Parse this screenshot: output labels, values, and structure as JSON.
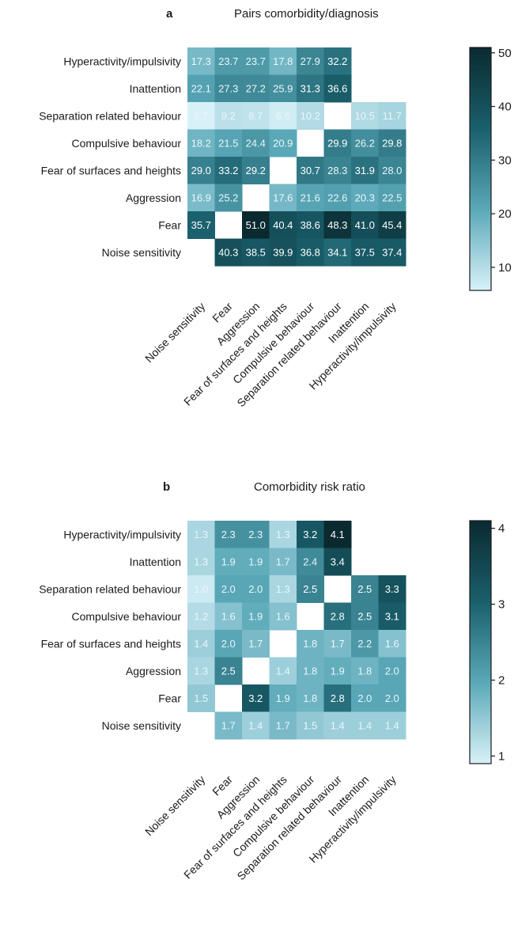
{
  "chart_data": [
    {
      "type": "heatmap",
      "panel_letter": "a",
      "title": "Pairs comorbidity/diagnosis",
      "row_labels": [
        "Hyperactivity/impulsivity",
        "Inattention",
        "Separation related behaviour",
        "Compulsive behaviour",
        "Fear of surfaces and heights",
        "Aggression",
        "Fear",
        "Noise sensitivity"
      ],
      "col_labels": [
        "Noise sensitivity",
        "Fear",
        "Aggression",
        "Fear of surfaces and heights",
        "Compulsive behaviour",
        "Separation related behaviour",
        "Inattention",
        "Hyperactivity/impulsivity"
      ],
      "values": [
        [
          "17.3",
          "23.7",
          "23.7",
          "17.8",
          "27.9",
          "32.2",
          null,
          null
        ],
        [
          "22.1",
          "27.3",
          "27.2",
          "25.9",
          "31.3",
          "36.6",
          null,
          null
        ],
        [
          "5.7",
          "9.2",
          "8.7",
          "6.6",
          "10.2",
          null,
          "10.5",
          "11.7"
        ],
        [
          "18.2",
          "21.5",
          "24.4",
          "20.9",
          null,
          "29.9",
          "26.2",
          "29.8"
        ],
        [
          "29.0",
          "33.2",
          "29.2",
          null,
          "30.7",
          "28.3",
          "31.9",
          "28.0"
        ],
        [
          "16.9",
          "25.2",
          null,
          "17.6",
          "21.6",
          "22.6",
          "20.3",
          "22.5"
        ],
        [
          "35.7",
          null,
          "51.0",
          "40.4",
          "38.6",
          "48.3",
          "41.0",
          "45.4"
        ],
        [
          null,
          "40.3",
          "38.5",
          "39.9",
          "36.8",
          "34.1",
          "37.5",
          "37.4"
        ]
      ],
      "color_range": [
        5.7,
        51.0
      ],
      "colorbar_ticks": [
        "10",
        "20",
        "30",
        "40",
        "50"
      ],
      "colormap": [
        "#d8f1f8",
        "#5aa8b8",
        "#1a5f6c",
        "#0a2a30"
      ]
    },
    {
      "type": "heatmap",
      "panel_letter": "b",
      "title": "Comorbidity risk ratio",
      "row_labels": [
        "Hyperactivity/impulsivity",
        "Inattention",
        "Separation related behaviour",
        "Compulsive behaviour",
        "Fear of surfaces and heights",
        "Aggression",
        "Fear",
        "Noise sensitivity"
      ],
      "col_labels": [
        "Noise sensitivity",
        "Fear",
        "Aggression",
        "Fear of surfaces and heights",
        "Compulsive behaviour",
        "Separation related behaviour",
        "Inattention",
        "Hyperactivity/impulsivity"
      ],
      "values": [
        [
          "1.3",
          "2.3",
          "2.3",
          "1.3",
          "3.2",
          "4.1",
          null,
          null
        ],
        [
          "1.3",
          "1.9",
          "1.9",
          "1.7",
          "2.4",
          "3.4",
          null,
          null
        ],
        [
          "1.0",
          "2.0",
          "2.0",
          "1.3",
          "2.5",
          null,
          "2.5",
          "3.3"
        ],
        [
          "1.2",
          "1.6",
          "1.9",
          "1.6",
          null,
          "2.8",
          "2.5",
          "3.1"
        ],
        [
          "1.4",
          "2.0",
          "1.7",
          null,
          "1.8",
          "1.7",
          "2.2",
          "1.6"
        ],
        [
          "1.3",
          "2.5",
          null,
          "1.4",
          "1.8",
          "1.9",
          "1.8",
          "2.0"
        ],
        [
          "1.5",
          null,
          "3.2",
          "1.9",
          "1.8",
          "2.8",
          "2.0",
          "2.0"
        ],
        [
          null,
          "1.7",
          "1.4",
          "1.7",
          "1.5",
          "1.4",
          "1.4",
          "1.4"
        ]
      ],
      "color_range": [
        0.9,
        4.1
      ],
      "colorbar_ticks": [
        "1",
        "2",
        "3",
        "4"
      ],
      "colormap": [
        "#d8f1f8",
        "#5aa8b8",
        "#1a5f6c",
        "#0a2a30"
      ]
    }
  ]
}
